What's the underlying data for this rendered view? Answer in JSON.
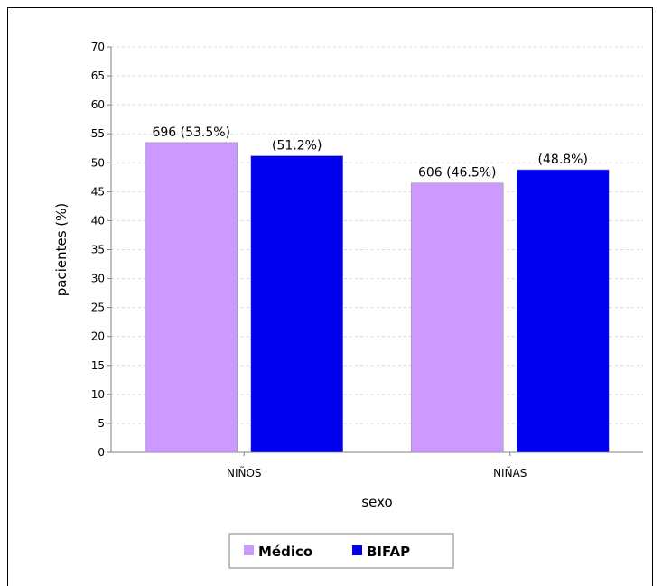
{
  "chart_data": {
    "type": "bar",
    "xlabel": "sexo",
    "ylabel": "pacientes (%)",
    "ylim": [
      0,
      70
    ],
    "ytick_step": 5,
    "grid": true,
    "legend_position": "bottom-center",
    "categories": [
      "NIÑOS",
      "NIÑAS"
    ],
    "series": [
      {
        "name": "Médico",
        "color": "#cc99ff",
        "values": [
          53.5,
          46.5
        ],
        "labels": [
          "696 (53.5%)",
          "606 (46.5%)"
        ]
      },
      {
        "name": "BIFAP",
        "color": "#0000ee",
        "values": [
          51.2,
          48.8
        ],
        "labels": [
          "(51.2%)",
          "(48.8%)"
        ]
      }
    ]
  }
}
